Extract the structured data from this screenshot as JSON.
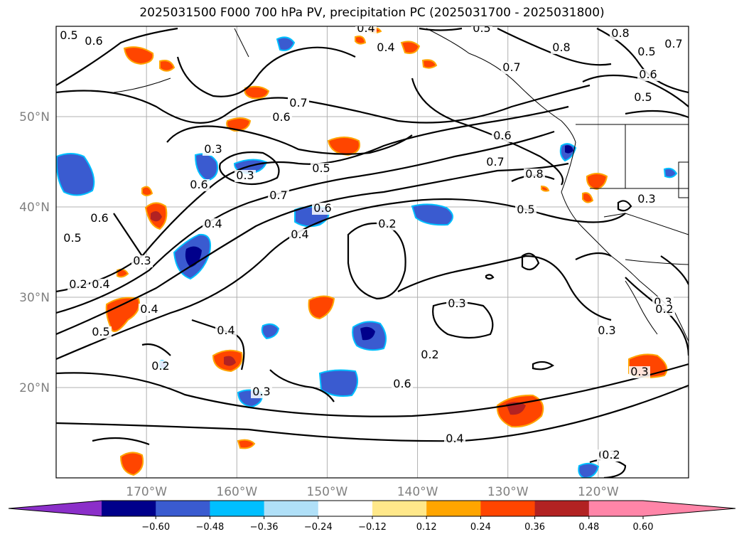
{
  "title": "2025031500 F000 700 hPa PV, precipitation PC (2025031700 - 2025031800)",
  "map": {
    "lat_labels": [
      {
        "text": "50°N",
        "lat": 50
      },
      {
        "text": "40°N",
        "lat": 40
      },
      {
        "text": "30°N",
        "lat": 30
      },
      {
        "text": "20°N",
        "lat": 20
      }
    ],
    "lon_labels": [
      {
        "text": "170°W",
        "lon": -170
      },
      {
        "text": "160°W",
        "lon": -160
      },
      {
        "text": "150°W",
        "lon": -150
      },
      {
        "text": "140°W",
        "lon": -140
      },
      {
        "text": "130°W",
        "lon": -130
      },
      {
        "text": "120°W",
        "lon": -120
      }
    ],
    "extent": {
      "lon_min": -180,
      "lon_max": -110,
      "lat_min": 10,
      "lat_max": 60
    },
    "gridlines": true,
    "contour_labels": [
      "0.5",
      "0.6",
      "0.6",
      "0.8",
      "0.4",
      "0.5",
      "0.7",
      "0.5",
      "0.8",
      "0.4",
      "0.7",
      "0.7",
      "0.6",
      "0.5",
      "0.3",
      "0.7",
      "0.6",
      "0.6",
      "0.7",
      "0.8",
      "0.3",
      "0.5",
      "0.3",
      "0.6",
      "0.7",
      "0.4",
      "0.6",
      "0.4",
      "0.5",
      "0.3",
      "0.2",
      "0.5",
      "0.4",
      "0.5",
      "0.3",
      "0.4",
      "0.3",
      "0.6",
      "0.3",
      "0.2",
      "0.2",
      "0.3",
      "0.4",
      "0.3",
      "0.3",
      "0.2",
      "0.4",
      "0.2",
      "0.2"
    ]
  },
  "colorbar": {
    "colors": [
      "#8b2fc9",
      "#9b33d6",
      "#00008b",
      "#3a5bd0",
      "#00bfff",
      "#b0e0f8",
      "#ffffff",
      "#ffe88a",
      "#ffa500",
      "#ff4500",
      "#b22222",
      "#ff85a8",
      "#ff85a8"
    ],
    "ticks": [
      "−0.60",
      "−0.48",
      "−0.36",
      "−0.24",
      "−0.12",
      "0.12",
      "0.24",
      "0.36",
      "0.48",
      "0.60"
    ]
  }
}
